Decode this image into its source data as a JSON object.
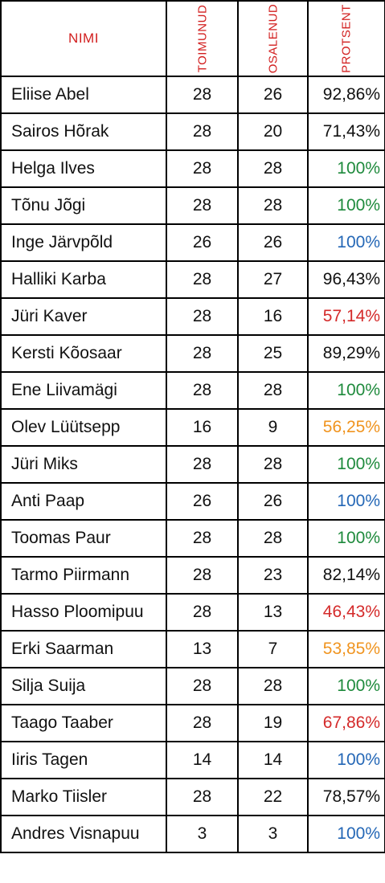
{
  "columns": {
    "name": "NIMI",
    "held": "TOIMUNUD",
    "attended": "OSALENUD",
    "percent": "PROTSENT"
  },
  "percent_colors": {
    "default": "#111111",
    "green": "#1e8a3c",
    "blue": "#2467b6",
    "red": "#d42a2a",
    "orange": "#f0941f"
  },
  "rows": [
    {
      "name": "Eliise Abel",
      "held": "28",
      "attended": "26",
      "percent": "92,86%",
      "color": "default"
    },
    {
      "name": "Sairos Hõrak",
      "held": "28",
      "attended": "20",
      "percent": "71,43%",
      "color": "default"
    },
    {
      "name": "Helga Ilves",
      "held": "28",
      "attended": "28",
      "percent": "100%",
      "color": "green"
    },
    {
      "name": "Tõnu Jõgi",
      "held": "28",
      "attended": "28",
      "percent": "100%",
      "color": "green"
    },
    {
      "name": "Inge Järvpõld",
      "held": "26",
      "attended": "26",
      "percent": "100%",
      "color": "blue"
    },
    {
      "name": "Halliki Karba",
      "held": "28",
      "attended": "27",
      "percent": "96,43%",
      "color": "default"
    },
    {
      "name": "Jüri Kaver",
      "held": "28",
      "attended": "16",
      "percent": "57,14%",
      "color": "red"
    },
    {
      "name": "Kersti Kõosaar",
      "held": "28",
      "attended": "25",
      "percent": "89,29%",
      "color": "default"
    },
    {
      "name": "Ene Liivamägi",
      "held": "28",
      "attended": "28",
      "percent": "100%",
      "color": "green"
    },
    {
      "name": "Olev Lüütsepp",
      "held": "16",
      "attended": "9",
      "percent": "56,25%",
      "color": "orange"
    },
    {
      "name": "Jüri Miks",
      "held": "28",
      "attended": "28",
      "percent": "100%",
      "color": "green"
    },
    {
      "name": "Anti Paap",
      "held": "26",
      "attended": "26",
      "percent": "100%",
      "color": "blue"
    },
    {
      "name": "Toomas Paur",
      "held": "28",
      "attended": "28",
      "percent": "100%",
      "color": "green"
    },
    {
      "name": " Tarmo Piirmann",
      "held": "28",
      "attended": "23",
      "percent": "82,14%",
      "color": "default"
    },
    {
      "name": "Hasso Ploomipuu",
      "held": "28",
      "attended": "13",
      "percent": "46,43%",
      "color": "red"
    },
    {
      "name": "Erki Saarman",
      "held": "13",
      "attended": "7",
      "percent": "53,85%",
      "color": "orange"
    },
    {
      "name": "Silja Suija",
      "held": "28",
      "attended": "28",
      "percent": "100%",
      "color": "green"
    },
    {
      "name": "Taago Taaber",
      "held": "28",
      "attended": "19",
      "percent": "67,86%",
      "color": "red"
    },
    {
      "name": "Iiris Tagen",
      "held": "14",
      "attended": "14",
      "percent": "100%",
      "color": "blue"
    },
    {
      "name": "Marko Tiisler",
      "held": "28",
      "attended": "22",
      "percent": "78,57%",
      "color": "default"
    },
    {
      "name": "Andres Visnapuu",
      "held": "3",
      "attended": "3",
      "percent": "100%",
      "color": "blue"
    }
  ]
}
